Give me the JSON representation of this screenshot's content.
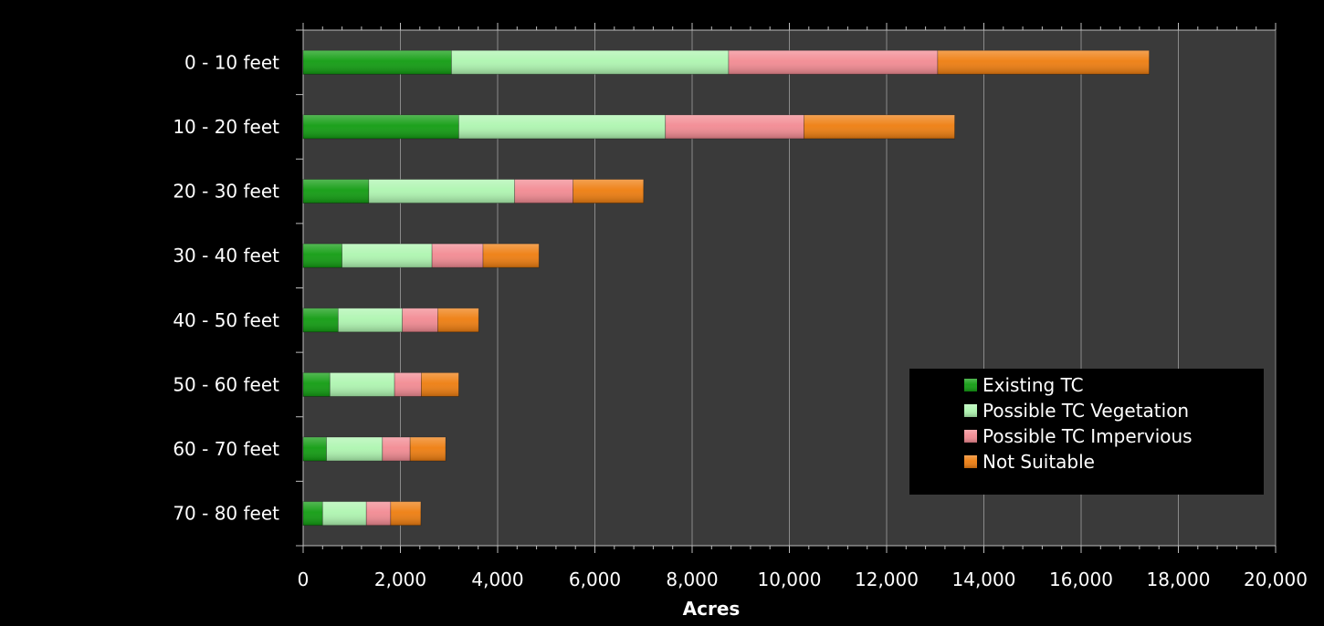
{
  "chart_data": {
    "type": "bar",
    "orientation": "horizontal",
    "stacked": true,
    "categories": [
      "0 - 10 feet",
      "10 - 20 feet",
      "20 - 30 feet",
      "30 - 40 feet",
      "40 - 50 feet",
      "50 - 60 feet",
      "60 - 70 feet",
      "70 - 80 feet"
    ],
    "series": [
      {
        "name": "Existing TC",
        "color": "#119c11",
        "values": [
          3050,
          3200,
          1350,
          800,
          720,
          550,
          480,
          400
        ]
      },
      {
        "name": "Possible TC Vegetation",
        "color": "#aef5b0",
        "values": [
          5700,
          4250,
          3000,
          1850,
          1320,
          1330,
          1150,
          900
        ]
      },
      {
        "name": "Possible TC Impervious",
        "color": "#f28a92",
        "values": [
          4300,
          2850,
          1200,
          1050,
          730,
          550,
          570,
          500
        ]
      },
      {
        "name": "Not Suitable",
        "color": "#ee7d0f",
        "values": [
          4350,
          3100,
          1450,
          1150,
          840,
          770,
          730,
          620
        ]
      }
    ],
    "xlabel": "Acres",
    "ylabel": "",
    "xlim": [
      0,
      20000
    ],
    "x_ticks": [
      "0",
      "2,000",
      "4,000",
      "6,000",
      "8,000",
      "10,000",
      "12,000",
      "14,000",
      "16,000",
      "18,000",
      "20,000"
    ],
    "grid": "vertical",
    "legend_position": "bottom-right",
    "plot_background": "#3a3a3a",
    "page_background": "#000000"
  }
}
